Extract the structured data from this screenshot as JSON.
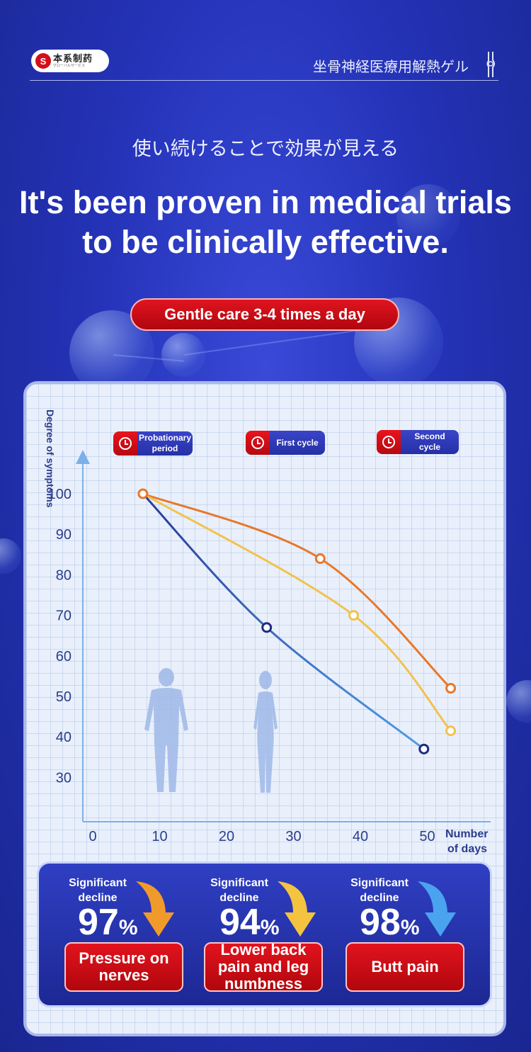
{
  "header": {
    "brand": "本系制药",
    "brand_sub": "グローバルサービス",
    "product": "坐骨神経医療用解熱ゲル"
  },
  "subtitle_jp": "使い続けることで効果が見える",
  "headline": "It's been proven in medical trials to be clinically effective.",
  "care_badge": "Gentle care 3-4 times a day",
  "phases": [
    {
      "label": "Probationary period"
    },
    {
      "label": "First cycle"
    },
    {
      "label": "Second cycle"
    }
  ],
  "chart_data": {
    "type": "line",
    "ylabel": "Degree of symptoms",
    "xlabel": "Number of days",
    "x_ticks": [
      0,
      10,
      20,
      30,
      40,
      50
    ],
    "y_ticks": [
      100,
      90,
      80,
      70,
      60,
      50,
      40,
      30
    ],
    "xlim": [
      0,
      60
    ],
    "ylim": [
      20,
      110
    ],
    "grid": true,
    "series": [
      {
        "color": "#e8782a",
        "points": [
          [
            7.5,
            100
          ],
          [
            34,
            84
          ],
          [
            53.5,
            52
          ]
        ]
      },
      {
        "color": "#f2c24e",
        "points": [
          [
            7.5,
            100
          ],
          [
            39,
            70
          ],
          [
            53.5,
            41.5
          ]
        ]
      },
      {
        "color": "#2a3a9a",
        "end_color": "#4e9ce6",
        "points": [
          [
            7.5,
            100
          ],
          [
            26,
            67
          ],
          [
            49.5,
            37
          ]
        ]
      }
    ]
  },
  "stats": [
    {
      "decline": "Significant decline",
      "value": "97",
      "unit": "%",
      "label": "Pressure on nerves",
      "arrow_color": "#f19a2c"
    },
    {
      "decline": "Significant decline",
      "value": "94",
      "unit": "%",
      "label": "Lower back pain and leg numbness",
      "arrow_color": "#f4c340"
    },
    {
      "decline": "Significant decline",
      "value": "98",
      "unit": "%",
      "label": "Butt pain",
      "arrow_color": "#4aa3ee"
    }
  ]
}
